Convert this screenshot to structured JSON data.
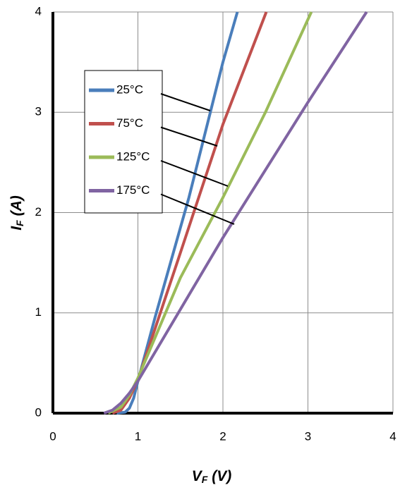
{
  "chart_data": {
    "type": "line",
    "xlabel": {
      "symbol": "V",
      "subscript": "F",
      "unit": "(V)"
    },
    "ylabel": {
      "symbol": "I",
      "subscript": "F",
      "unit": "(A)"
    },
    "xlim": [
      0,
      4
    ],
    "xticks": [
      0,
      1,
      2,
      3,
      4
    ],
    "ylim": [
      0,
      4
    ],
    "yticks": [
      0,
      1,
      2,
      3,
      4
    ],
    "grid": true,
    "series": [
      {
        "name": "25°C",
        "color": "#4a7ebb",
        "x": [
          0.75,
          0.85,
          0.9,
          0.95,
          1.0,
          1.2,
          1.6,
          2.0,
          2.17
        ],
        "values": [
          0,
          0.01,
          0.05,
          0.15,
          0.32,
          0.95,
          2.15,
          3.5,
          4.0
        ]
      },
      {
        "name": "75°C",
        "color": "#c0504d",
        "x": [
          0.7,
          0.8,
          0.9,
          1.0,
          1.5,
          2.0,
          2.51
        ],
        "values": [
          0,
          0.03,
          0.15,
          0.33,
          1.6,
          2.88,
          4.0
        ]
      },
      {
        "name": "125°C",
        "color": "#9bbb59",
        "x": [
          0.65,
          0.8,
          0.9,
          1.0,
          1.5,
          2.0,
          2.5,
          3.04
        ],
        "values": [
          0,
          0.06,
          0.18,
          0.35,
          1.35,
          2.15,
          3.0,
          4.0
        ]
      },
      {
        "name": "175°C",
        "color": "#8064a2",
        "x": [
          0.6,
          0.7,
          0.8,
          0.9,
          1.0,
          2.0,
          3.0,
          3.69
        ],
        "values": [
          0,
          0.03,
          0.1,
          0.2,
          0.32,
          1.75,
          3.1,
          4.0
        ]
      }
    ]
  }
}
